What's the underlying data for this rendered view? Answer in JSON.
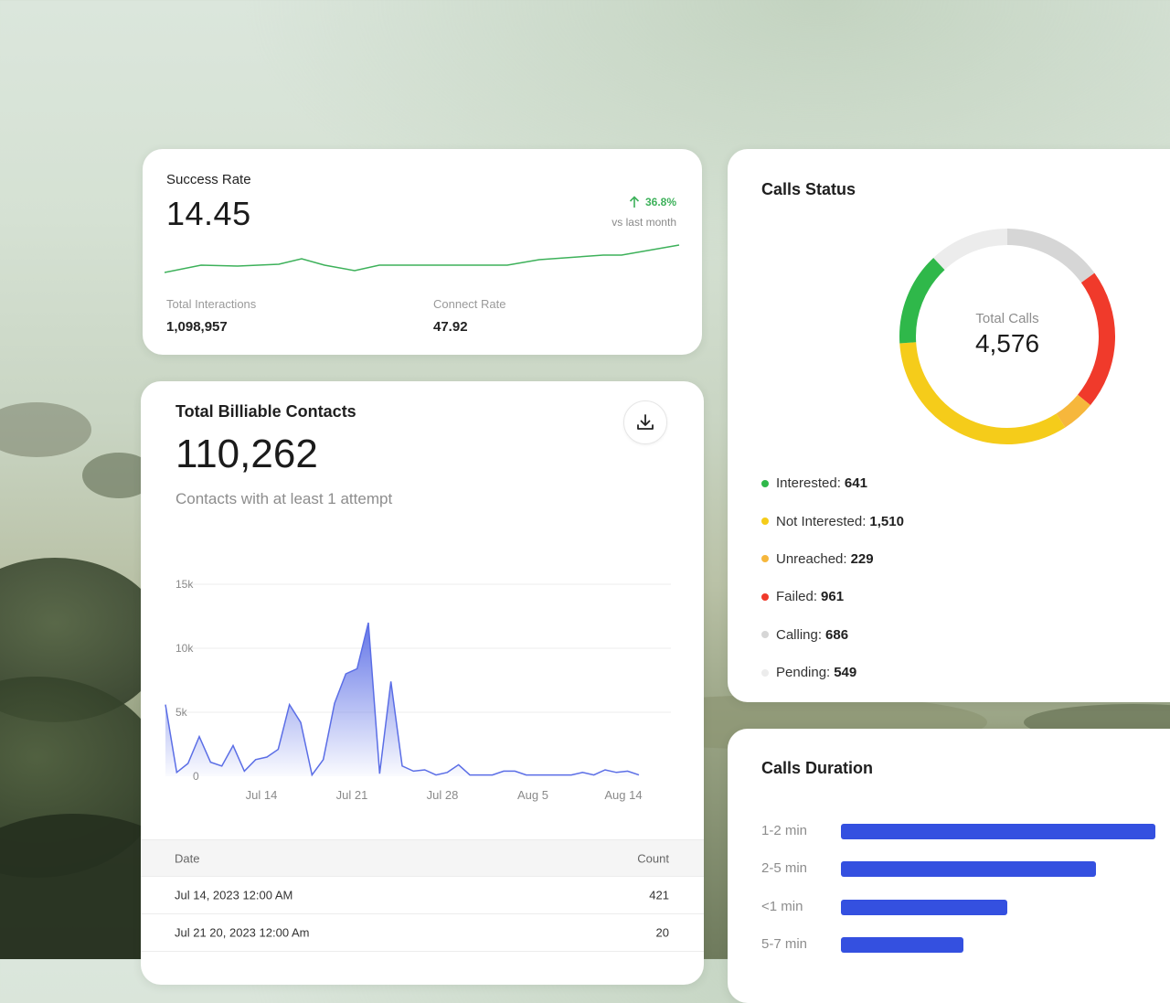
{
  "success_rate": {
    "label": "Success Rate",
    "value": "14.45",
    "change": "36.8%",
    "change_note": "vs last month",
    "trend_color": "#3db15a",
    "metrics": [
      {
        "label": "Total Interactions",
        "value": "1,098,957"
      },
      {
        "label": "Connect Rate",
        "value": "47.92"
      }
    ]
  },
  "billable": {
    "title": "Total Billiable Contacts",
    "value": "110,262",
    "subtitle": "Contacts with at least 1 attempt",
    "download_icon": "download-icon",
    "table": {
      "headers": [
        "Date",
        "Count"
      ],
      "rows": [
        [
          "Jul 14, 2023 12:00 AM",
          "421"
        ],
        [
          "Jul 21 20, 2023 12:00 Am",
          "20"
        ]
      ]
    }
  },
  "chart_data": {
    "type": "area",
    "title": "",
    "xlabel": "",
    "ylabel": "",
    "ylim": [
      0,
      15000
    ],
    "y_ticks": [
      "0",
      "5k",
      "10k",
      "15k"
    ],
    "x_tick_labels": [
      "Jul 14",
      "Jul 21",
      "Jul 28",
      "Aug 5",
      "Aug 14"
    ],
    "color": "#5b6ee6",
    "series": [
      {
        "values": [
          5600,
          300,
          1000,
          3100,
          1100,
          800,
          2400,
          400,
          1300,
          1500,
          2100,
          5600,
          4200,
          100,
          1300,
          5700,
          8000,
          8400,
          12000,
          200,
          7400,
          800,
          400,
          500,
          100,
          300,
          900,
          100,
          100,
          100,
          400,
          400,
          100,
          100,
          100,
          100,
          100,
          300,
          100,
          500,
          300,
          400,
          100
        ]
      }
    ]
  },
  "calls_status": {
    "title": "Calls Status",
    "center_label": "Total Calls",
    "center_value": "4,576",
    "legend": [
      {
        "label": "Interested:",
        "value": "641",
        "color": "#2fb84a"
      },
      {
        "label": "Not Interested:",
        "value": "1,510",
        "color": "#f5cc1a"
      },
      {
        "label": "Unreached:",
        "value": "229",
        "color": "#f6b73c"
      },
      {
        "label": "Failed:",
        "value": "961",
        "color": "#f03a2b"
      },
      {
        "label": "Calling:",
        "value": "686",
        "color": "#d6d6d6"
      },
      {
        "label": "Pending:",
        "value": "549",
        "color": "#ececec"
      }
    ]
  },
  "calls_duration": {
    "title": "Calls Duration",
    "bar_color": "#3450e0",
    "rows": [
      {
        "label": "1-2 min",
        "fraction": 1.0
      },
      {
        "label": "2-5 min",
        "fraction": 0.81
      },
      {
        "label": "<1 min",
        "fraction": 0.53
      },
      {
        "label": "5-7 min",
        "fraction": 0.39
      }
    ]
  }
}
